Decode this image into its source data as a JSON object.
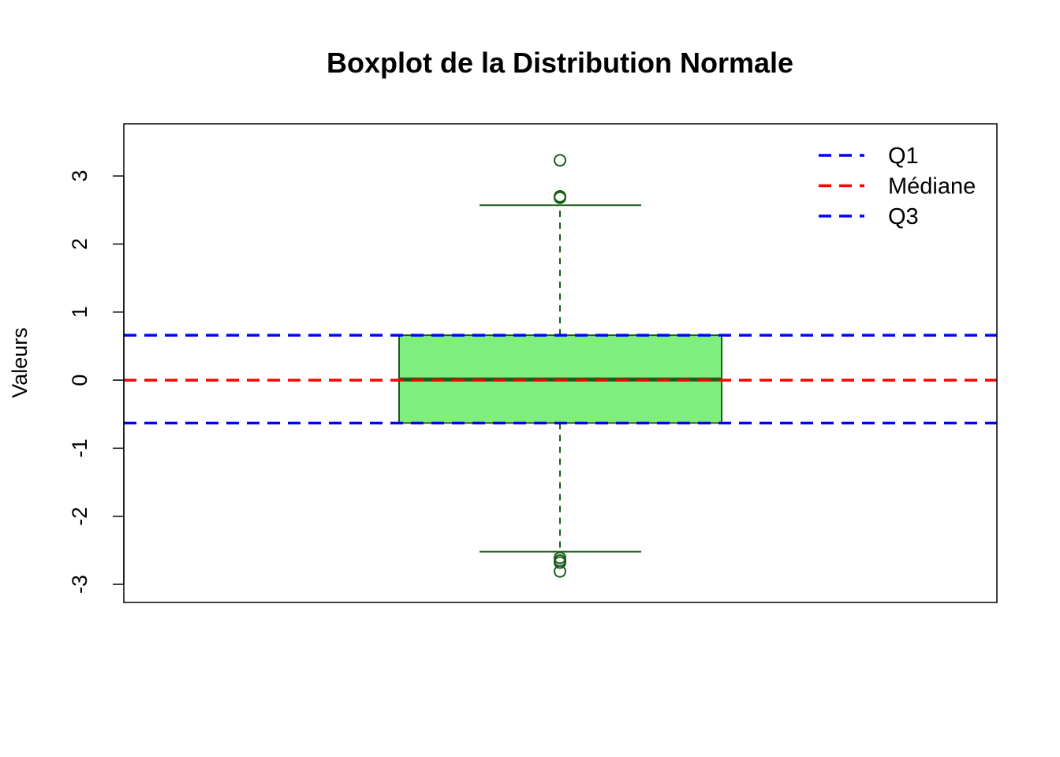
{
  "chart_data": {
    "type": "boxplot",
    "title": "Boxplot de la Distribution Normale",
    "ylabel": "Valeurs",
    "xlabel": "",
    "ylim": [
      -3.0,
      3.5
    ],
    "yticks": [
      -3,
      -2,
      -1,
      0,
      1,
      2,
      3
    ],
    "ytick_labels": [
      "-3",
      "-2",
      "-1",
      "0",
      "1",
      "2",
      "3"
    ],
    "box": {
      "q1": -0.63,
      "median": 0.01,
      "q3": 0.66,
      "whisker_low": -2.52,
      "whisker_high": 2.57,
      "outliers": [
        3.23,
        2.7,
        2.68,
        -2.61,
        -2.65,
        -2.68,
        -2.81
      ],
      "fill": "#80ee7d",
      "stroke": "#1a5c1a"
    },
    "reference_lines": [
      {
        "name": "Q1",
        "value": -0.63,
        "color": "#0000ff"
      },
      {
        "name": "Médiane",
        "value": 0.0,
        "color": "#ff0000"
      },
      {
        "name": "Q3",
        "value": 0.66,
        "color": "#0000ff"
      }
    ],
    "legend": {
      "position": "top-right",
      "entries": [
        {
          "label": "Q1",
          "color": "#0000ff"
        },
        {
          "label": "Médiane",
          "color": "#ff0000"
        },
        {
          "label": "Q3",
          "color": "#0000ff"
        }
      ]
    }
  }
}
